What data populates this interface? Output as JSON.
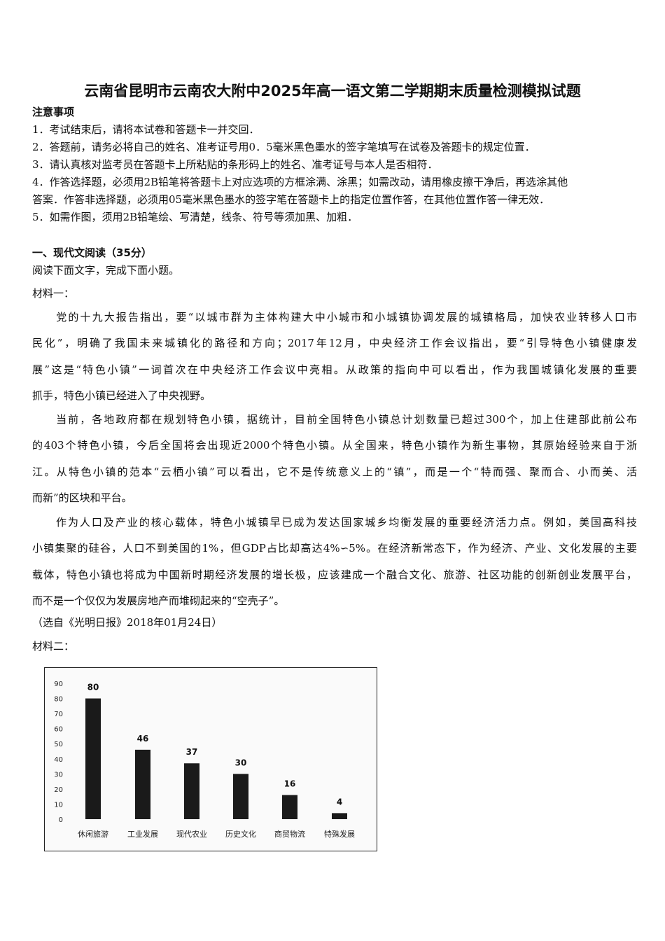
{
  "title": "云南省昆明市云南农大附中2025年高一语文第二学期期末质量检测模拟试题",
  "notice": {
    "heading": "注意事项",
    "items": [
      "1．考试结束后，请将本试卷和答题卡一并交回．",
      "2．答题前，请务必将自己的姓名、准考证号用0．5毫米黑色墨水的签字笔填写在试卷及答题卡的规定位置．",
      "3．请认真核对监考员在答题卡上所粘贴的条形码上的姓名、准考证号与本人是否相符．",
      "4．作答选择题，必须用2B铅笔将答题卡上对应选项的方框涂满、涂黑；如需改动，请用橡皮擦干净后，再选涂其他",
      "答案．作答非选择题，必须用05毫米黑色墨水的签字笔在答题卡上的指定位置作答，在其他位置作答一律无效．",
      "5．如需作图，须用2B铅笔绘、写清楚，线条、符号等须加黑、加粗．"
    ]
  },
  "section": {
    "heading": "一、现代文阅读（35分）",
    "instruction": "阅读下面文字，完成下面小题。",
    "material1_label": "材料一：",
    "paragraphs": [
      [
        "　　党的十九大报告指出，要“以城市群为主体构建大中小城市和小城镇协调发展的城镇格局，加快农业转移人口市",
        "民化”，明确了我国未来城镇化的路径和方向；2017年12月，中央经济工作会议指出，要“引导特色小镇健康发",
        "展”这是“特色小镇”一词首次在中央经济工作会议中亮相。从政策的指向中可以看出，作为我国城镇化发展的重要",
        "抓手，特色小镇已经进入了中央视野。"
      ],
      [
        "　　当前，各地政府都在规划特色小镇，据统计，目前全国特色小镇总计划数量已超过300个，加上住建部此前公布",
        "的403个特色小镇，今后全国将会出现近2000个特色小镇。从全国来，特色小镇作为新生事物，其原始经验来自于浙",
        "江。从特色小镇的范本“云栖小镇”可以看出，它不是传统意义上的“镇”，而是一个“特而强、聚而合、小而美、活",
        "而新”的区块和平台。"
      ],
      [
        "　　作为人口及产业的核心载体，特色小城镇早已成为发达国家城乡均衡发展的重要经济活力点。例如，美国高科技",
        "小镇集聚的硅谷，人口不到美国的1%，但GDP占比却高达4%∽5%。在经济新常态下，作为经济、产业、文化发展的主要",
        "载体，特色小镇也将成为中国新时期经济发展的增长极，应该建成一个融合文化、旅游、社区功能的创新创业发展平台，",
        "而不是一个仅仅为发展房地产而堆砌起来的“空壳子”。"
      ]
    ],
    "source": "（选自《光明日报》2018年01月24日）",
    "material2_label": "材料二："
  },
  "chart_data": {
    "type": "bar",
    "categories": [
      "休闲旅游",
      "工业发展",
      "现代农业",
      "历史文化",
      "商贸物流",
      "特殊发展"
    ],
    "values": [
      80,
      46,
      37,
      30,
      16,
      4
    ],
    "data_labels": [
      "80",
      "46",
      "37",
      "30",
      "16",
      "4"
    ],
    "y_ticks": [
      "0",
      "10",
      "20",
      "30",
      "40",
      "50",
      "60",
      "70",
      "80",
      "90"
    ],
    "ylim": [
      0,
      90
    ],
    "grid": false,
    "bar_color": "#1a1a1a"
  }
}
